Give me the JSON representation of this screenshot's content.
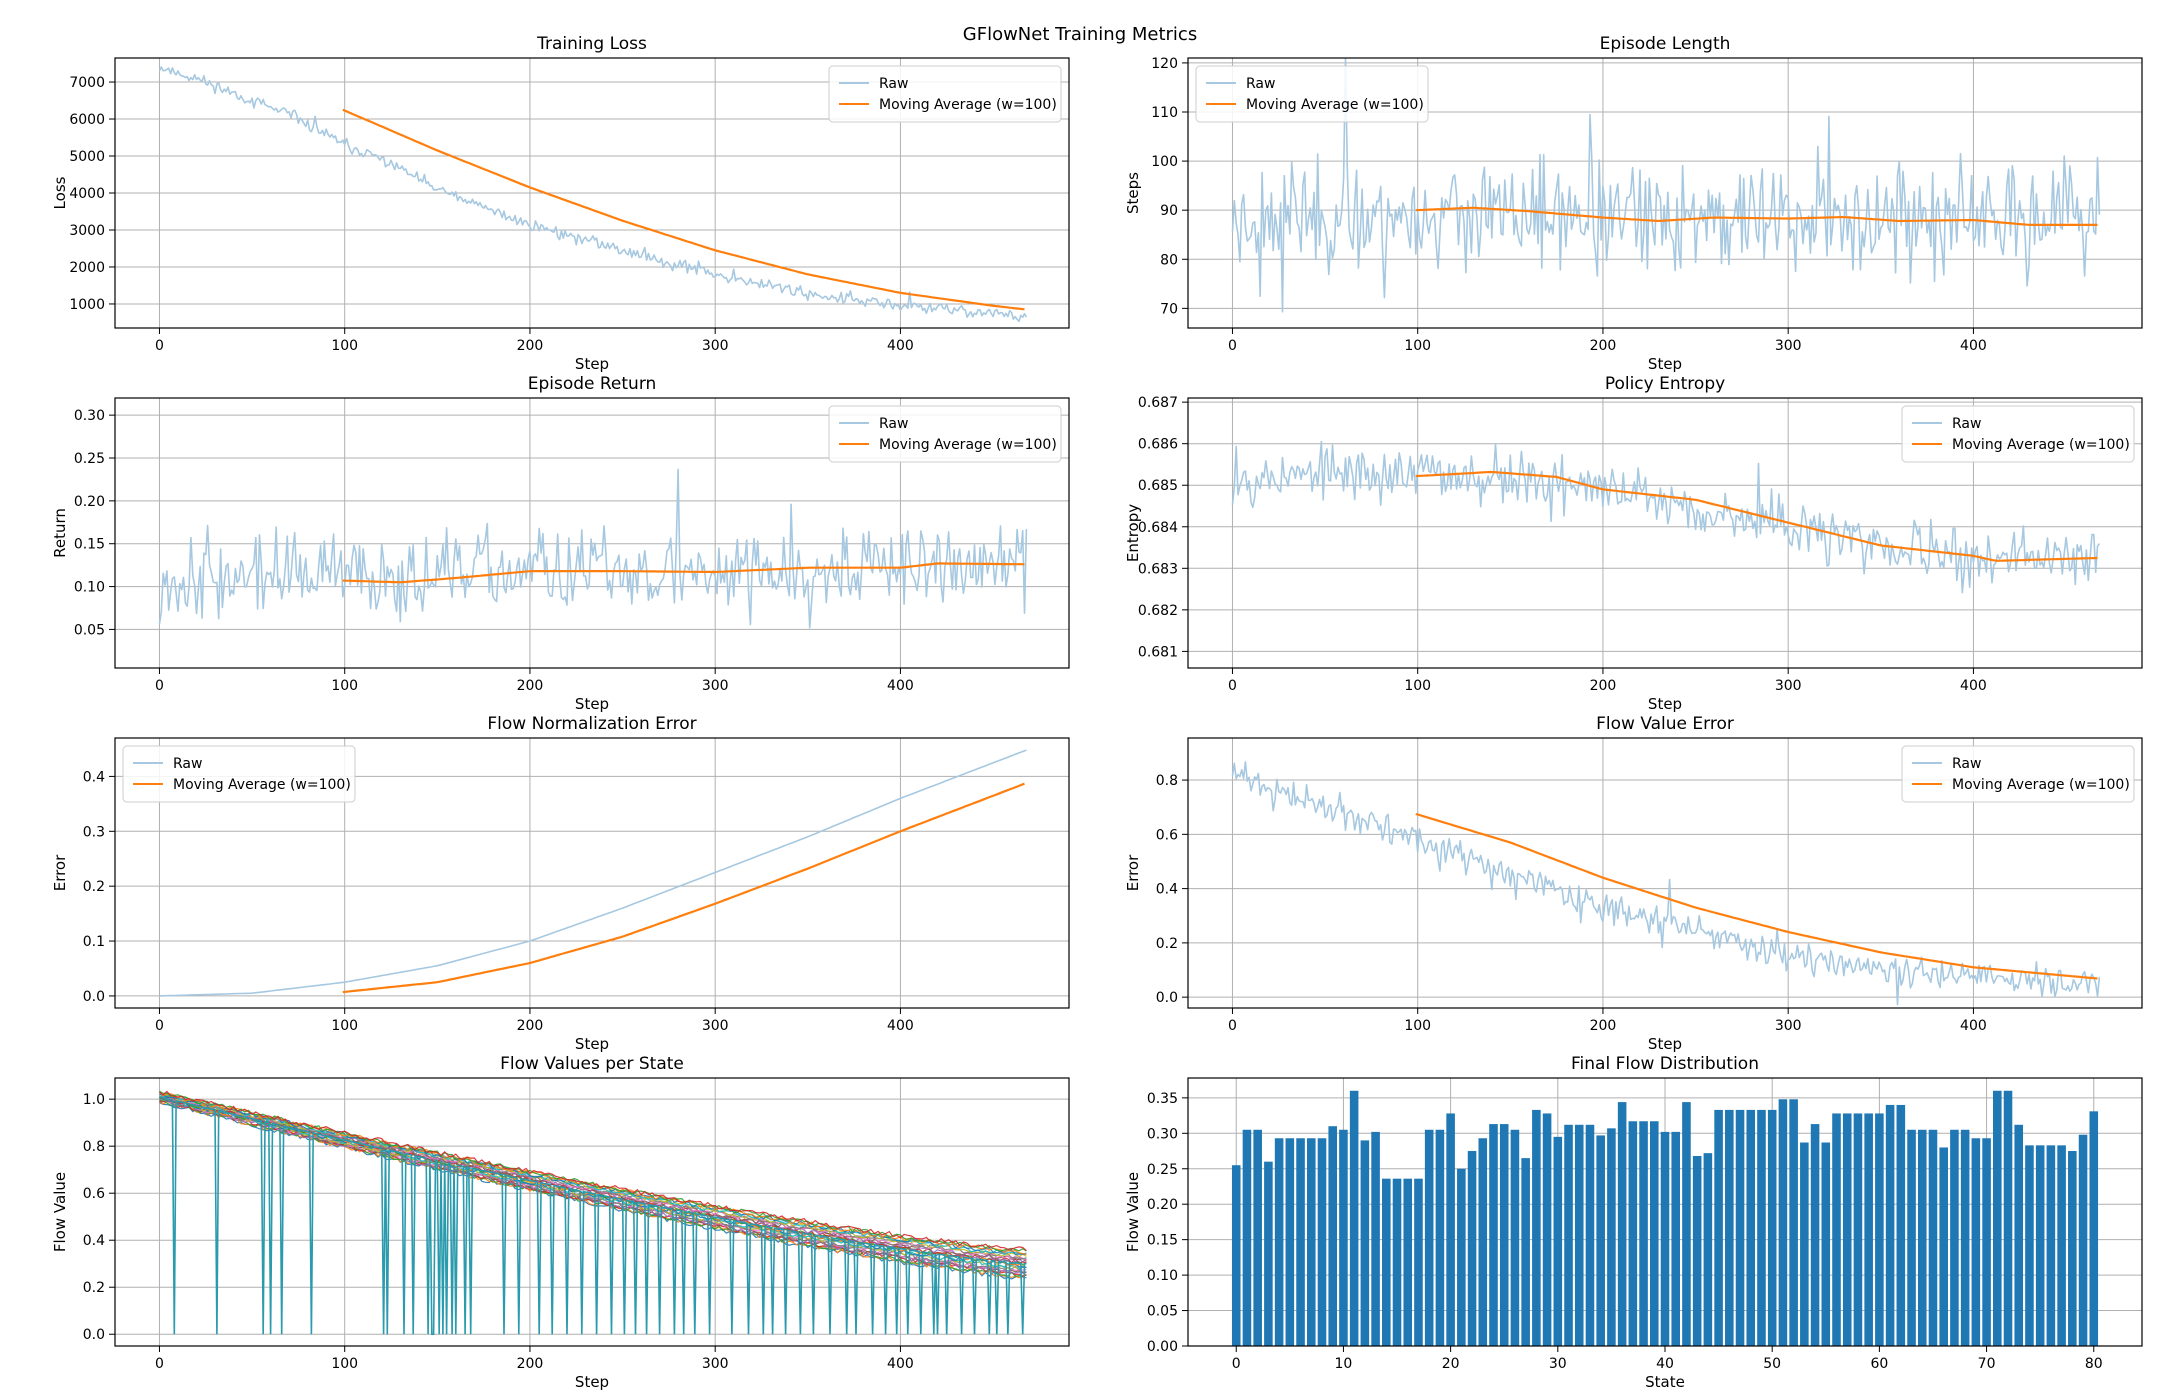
{
  "figure": {
    "suptitle": "GFlowNet Training Metrics",
    "colors": {
      "raw": "#a6c8e0",
      "moving_average": "#ff7f0e",
      "bar": "#1f77b4",
      "grid": "#b0b0b0",
      "axes": "#000000"
    }
  },
  "chart_data": [
    {
      "id": "loss",
      "type": "line",
      "title": "Training Loss",
      "xlabel": "Step",
      "ylabel": "Loss",
      "xlim": [
        -24,
        491
      ],
      "ylim": [
        350,
        7650
      ],
      "xticks": [
        0,
        100,
        200,
        300,
        400
      ],
      "yticks": [
        1000,
        2000,
        3000,
        4000,
        5000,
        6000,
        7000
      ],
      "grid": true,
      "legend": "top-right",
      "series": [
        {
          "name": "Raw",
          "role": "raw",
          "x_start": 0,
          "x_end": 468,
          "keypoints": [
            [
              0,
              7400
            ],
            [
              25,
              7000
            ],
            [
              50,
              6500
            ],
            [
              75,
              6000
            ],
            [
              100,
              5300
            ],
            [
              125,
              4800
            ],
            [
              150,
              4100
            ],
            [
              175,
              3600
            ],
            [
              200,
              3150
            ],
            [
              225,
              2800
            ],
            [
              250,
              2450
            ],
            [
              275,
              2150
            ],
            [
              300,
              1800
            ],
            [
              325,
              1550
            ],
            [
              350,
              1300
            ],
            [
              375,
              1100
            ],
            [
              400,
              950
            ],
            [
              425,
              850
            ],
            [
              450,
              750
            ],
            [
              468,
              650
            ]
          ],
          "noise": 120,
          "seed": 11
        },
        {
          "name": "Moving Average (w=100)",
          "role": "ma",
          "x_start": 99,
          "x_end": 468,
          "keypoints": [
            [
              99,
              6250
            ],
            [
              150,
              5150
            ],
            [
              200,
              4150
            ],
            [
              250,
              3250
            ],
            [
              300,
              2450
            ],
            [
              350,
              1800
            ],
            [
              400,
              1300
            ],
            [
              450,
              950
            ],
            [
              468,
              850
            ]
          ]
        }
      ]
    },
    {
      "id": "length",
      "type": "line",
      "title": "Episode Length",
      "xlabel": "Step",
      "ylabel": "Steps",
      "xlim": [
        -24,
        491
      ],
      "ylim": [
        66,
        121
      ],
      "xticks": [
        0,
        100,
        200,
        300,
        400
      ],
      "yticks": [
        70,
        80,
        90,
        100,
        110,
        120
      ],
      "grid": true,
      "legend": "top-left",
      "series": [
        {
          "name": "Raw",
          "role": "raw",
          "x_start": 0,
          "x_end": 468,
          "keypoints": [
            [
              0,
              89
            ],
            [
              468,
              88
            ]
          ],
          "noise": 8,
          "seed": 23
        },
        {
          "name": "Moving Average (w=100)",
          "role": "ma",
          "x_start": 99,
          "x_end": 468,
          "keypoints": [
            [
              99,
              90
            ],
            [
              130,
              90.5
            ],
            [
              160,
              89.8
            ],
            [
              200,
              88.5
            ],
            [
              230,
              87.8
            ],
            [
              260,
              88.5
            ],
            [
              300,
              88.3
            ],
            [
              330,
              88.6
            ],
            [
              360,
              87.8
            ],
            [
              400,
              88
            ],
            [
              430,
              87
            ],
            [
              468,
              87
            ]
          ]
        }
      ]
    },
    {
      "id": "return",
      "type": "line",
      "title": "Episode Return",
      "xlabel": "Step",
      "ylabel": "Return",
      "xlim": [
        -24,
        491
      ],
      "ylim": [
        0.005,
        0.32
      ],
      "xticks": [
        0,
        100,
        200,
        300,
        400
      ],
      "yticks": [
        0.05,
        0.1,
        0.15,
        0.2,
        0.25,
        0.3
      ],
      "grid": true,
      "legend": "top-right",
      "series": [
        {
          "name": "Raw",
          "role": "raw",
          "x_start": 0,
          "x_end": 468,
          "keypoints": [
            [
              0,
              0.11
            ],
            [
              468,
              0.125
            ]
          ],
          "noise": 0.035,
          "seed": 37
        },
        {
          "name": "Moving Average (w=100)",
          "role": "ma",
          "x_start": 99,
          "x_end": 468,
          "keypoints": [
            [
              99,
              0.107
            ],
            [
              130,
              0.105
            ],
            [
              160,
              0.11
            ],
            [
              200,
              0.118
            ],
            [
              250,
              0.118
            ],
            [
              300,
              0.117
            ],
            [
              350,
              0.122
            ],
            [
              400,
              0.122
            ],
            [
              420,
              0.127
            ],
            [
              468,
              0.126
            ]
          ]
        }
      ]
    },
    {
      "id": "entropy",
      "type": "line",
      "title": "Policy Entropy",
      "xlabel": "Step",
      "ylabel": "Entropy",
      "xlim": [
        -24,
        491
      ],
      "ylim": [
        0.6806,
        0.6871
      ],
      "xticks": [
        0,
        100,
        200,
        300,
        400
      ],
      "yticks": [
        0.681,
        0.682,
        0.683,
        0.684,
        0.685,
        0.686,
        0.687
      ],
      "grid": true,
      "legend": "top-right",
      "series": [
        {
          "name": "Raw",
          "role": "raw",
          "x_start": 0,
          "x_end": 468,
          "keypoints": [
            [
              0,
              0.6852
            ],
            [
              100,
              0.6853
            ],
            [
              150,
              0.6852
            ],
            [
              200,
              0.6849
            ],
            [
              250,
              0.6845
            ],
            [
              300,
              0.684
            ],
            [
              350,
              0.6835
            ],
            [
              400,
              0.6832
            ],
            [
              468,
              0.6833
            ]
          ],
          "noise": 0.0005,
          "seed": 53
        },
        {
          "name": "Moving Average (w=100)",
          "role": "ma",
          "x_start": 99,
          "x_end": 468,
          "keypoints": [
            [
              99,
              0.68522
            ],
            [
              140,
              0.68532
            ],
            [
              175,
              0.6852
            ],
            [
              200,
              0.6849
            ],
            [
              250,
              0.68465
            ],
            [
              300,
              0.6841
            ],
            [
              350,
              0.68355
            ],
            [
              400,
              0.6833
            ],
            [
              412,
              0.68318
            ],
            [
              468,
              0.68325
            ]
          ]
        }
      ]
    },
    {
      "id": "flownorm",
      "type": "line",
      "title": "Flow Normalization Error",
      "xlabel": "Step",
      "ylabel": "Error",
      "xlim": [
        -24,
        491
      ],
      "ylim": [
        -0.022,
        0.47
      ],
      "xticks": [
        0,
        100,
        200,
        300,
        400
      ],
      "yticks": [
        0.0,
        0.1,
        0.2,
        0.3,
        0.4
      ],
      "grid": true,
      "legend": "top-left",
      "series": [
        {
          "name": "Raw",
          "role": "raw",
          "x_start": 0,
          "x_end": 468,
          "keypoints": [
            [
              0,
              0.0
            ],
            [
              50,
              0.005
            ],
            [
              100,
              0.025
            ],
            [
              150,
              0.055
            ],
            [
              200,
              0.1
            ],
            [
              250,
              0.16
            ],
            [
              300,
              0.225
            ],
            [
              350,
              0.29
            ],
            [
              400,
              0.36
            ],
            [
              468,
              0.448
            ]
          ]
        },
        {
          "name": "Moving Average (w=100)",
          "role": "ma",
          "x_start": 99,
          "x_end": 468,
          "keypoints": [
            [
              99,
              0.007
            ],
            [
              150,
              0.025
            ],
            [
              200,
              0.06
            ],
            [
              250,
              0.108
            ],
            [
              300,
              0.168
            ],
            [
              350,
              0.232
            ],
            [
              400,
              0.3
            ],
            [
              468,
              0.388
            ]
          ]
        }
      ]
    },
    {
      "id": "flowvalerr",
      "type": "line",
      "title": "Flow Value Error",
      "xlabel": "Step",
      "ylabel": "Error",
      "xlim": [
        -24,
        491
      ],
      "ylim": [
        -0.04,
        0.955
      ],
      "xticks": [
        0,
        100,
        200,
        300,
        400
      ],
      "yticks": [
        0.0,
        0.2,
        0.4,
        0.6,
        0.8
      ],
      "grid": true,
      "legend": "top-right",
      "series": [
        {
          "name": "Raw",
          "role": "raw",
          "x_start": 0,
          "x_end": 468,
          "keypoints": [
            [
              0,
              0.82
            ],
            [
              50,
              0.7
            ],
            [
              100,
              0.58
            ],
            [
              150,
              0.45
            ],
            [
              200,
              0.33
            ],
            [
              250,
              0.24
            ],
            [
              300,
              0.16
            ],
            [
              350,
              0.11
            ],
            [
              400,
              0.07
            ],
            [
              468,
              0.04
            ]
          ],
          "noise": 0.04,
          "seed": 71
        },
        {
          "name": "Moving Average (w=100)",
          "role": "ma",
          "x_start": 99,
          "x_end": 468,
          "keypoints": [
            [
              99,
              0.675
            ],
            [
              150,
              0.57
            ],
            [
              200,
              0.44
            ],
            [
              250,
              0.33
            ],
            [
              300,
              0.24
            ],
            [
              350,
              0.165
            ],
            [
              400,
              0.11
            ],
            [
              468,
              0.068
            ]
          ]
        }
      ]
    },
    {
      "id": "flowvalues",
      "type": "line",
      "title": "Flow Values per State",
      "xlabel": "Step",
      "ylabel": "Flow Value",
      "xlim": [
        -24,
        491
      ],
      "ylim": [
        -0.05,
        1.09
      ],
      "xticks": [
        0,
        100,
        200,
        300,
        400
      ],
      "yticks": [
        0.0,
        0.2,
        0.4,
        0.6,
        0.8,
        1.0
      ],
      "grid": true,
      "band": {
        "x_start": 0,
        "x_end": 468,
        "top_start": 1.03,
        "top_end": 0.36,
        "bottom_start": 0.99,
        "bottom_end": 0.24,
        "count": 24
      },
      "drop_steps": [
        8,
        31,
        56,
        60,
        66,
        82,
        121,
        123,
        132,
        137,
        145,
        147,
        148,
        151,
        153,
        155,
        158,
        160,
        165,
        168,
        186,
        194,
        205,
        212,
        220,
        228,
        236,
        244,
        251,
        257,
        263,
        270,
        278,
        283,
        289,
        297,
        309,
        318,
        326,
        331,
        338,
        346,
        353,
        362,
        371,
        376,
        385,
        392,
        398,
        404,
        411,
        418,
        420,
        425,
        433,
        440,
        448,
        452,
        458,
        466
      ]
    },
    {
      "id": "finalflow",
      "type": "bar",
      "title": "Final Flow Distribution",
      "xlabel": "State",
      "ylabel": "Flow Value",
      "xlim": [
        -4.5,
        84.5
      ],
      "ylim": [
        0,
        0.378
      ],
      "xticks": [
        0,
        10,
        20,
        30,
        40,
        50,
        60,
        70,
        80
      ],
      "yticks": [
        0.0,
        0.05,
        0.1,
        0.15,
        0.2,
        0.25,
        0.3,
        0.35
      ],
      "grid": true,
      "categories": [
        0,
        1,
        2,
        3,
        4,
        5,
        6,
        7,
        8,
        9,
        10,
        11,
        12,
        13,
        14,
        15,
        16,
        17,
        18,
        19,
        20,
        21,
        22,
        23,
        24,
        25,
        26,
        27,
        28,
        29,
        30,
        31,
        32,
        33,
        34,
        35,
        36,
        37,
        38,
        39,
        40,
        41,
        42,
        43,
        44,
        45,
        46,
        47,
        48,
        49,
        50,
        51,
        52,
        53,
        54,
        55,
        56,
        57,
        58,
        59,
        60,
        61,
        62,
        63,
        64,
        65,
        66,
        67,
        68,
        69,
        70,
        71,
        72,
        73,
        74,
        75,
        76,
        77,
        78,
        79,
        80
      ],
      "values": [
        0.255,
        0.305,
        0.305,
        0.26,
        0.293,
        0.293,
        0.293,
        0.293,
        0.293,
        0.31,
        0.305,
        0.36,
        0.29,
        0.302,
        0.236,
        0.236,
        0.236,
        0.236,
        0.305,
        0.305,
        0.328,
        0.25,
        0.275,
        0.293,
        0.313,
        0.313,
        0.305,
        0.265,
        0.333,
        0.328,
        0.295,
        0.312,
        0.312,
        0.312,
        0.297,
        0.307,
        0.344,
        0.317,
        0.317,
        0.317,
        0.302,
        0.302,
        0.344,
        0.268,
        0.272,
        0.333,
        0.333,
        0.333,
        0.333,
        0.333,
        0.333,
        0.348,
        0.348,
        0.287,
        0.313,
        0.287,
        0.328,
        0.328,
        0.328,
        0.328,
        0.328,
        0.34,
        0.34,
        0.305,
        0.305,
        0.305,
        0.28,
        0.305,
        0.305,
        0.293,
        0.293,
        0.36,
        0.36,
        0.312,
        0.283,
        0.283,
        0.283,
        0.283,
        0.275,
        0.298,
        0.331
      ]
    }
  ]
}
